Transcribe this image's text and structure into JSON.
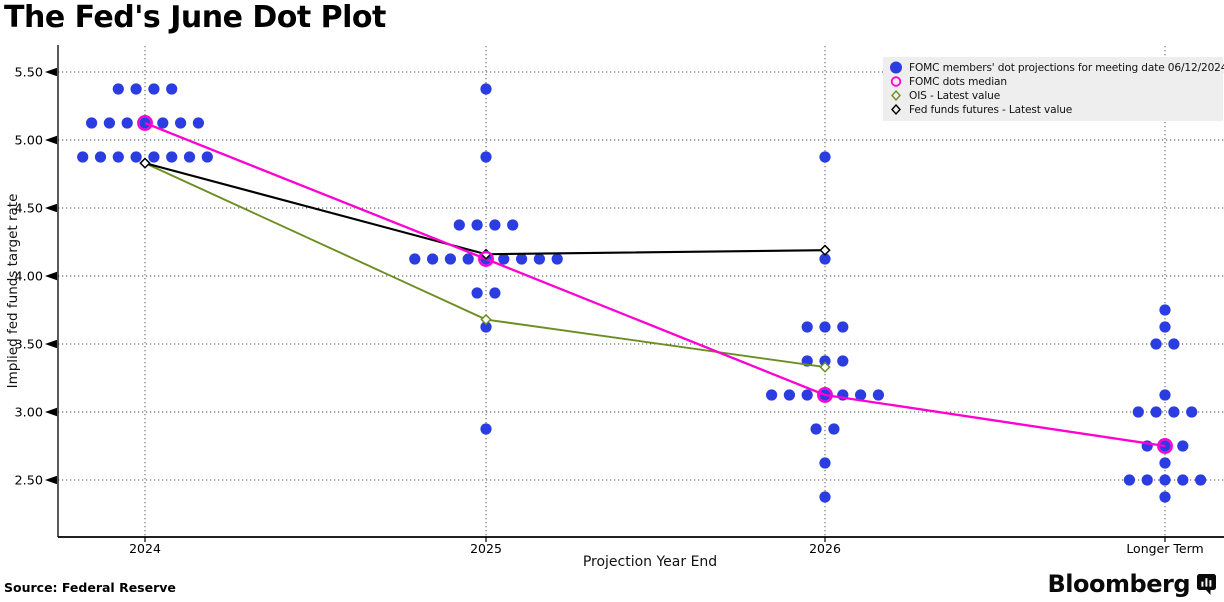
{
  "header": {
    "title": "The Fed's June Dot Plot"
  },
  "footer": {
    "source": "Source: Federal Reserve",
    "brand": "Bloomberg"
  },
  "chart_data": {
    "type": "scatter",
    "title": "The Fed's June Dot Plot",
    "xlabel": "Projection Year End",
    "ylabel": "Implied fed funds target rate",
    "categories": [
      "2024",
      "2025",
      "2026",
      "Longer Term"
    ],
    "ylim": [
      2.08,
      5.7
    ],
    "grid": true,
    "legend_position": "top-right",
    "legend_bg": "#EEEEEE",
    "yticks": [
      {
        "value": 5.5,
        "label": "5.50"
      },
      {
        "value": 5.0,
        "label": "5.00"
      },
      {
        "value": 4.5,
        "label": "4.50"
      },
      {
        "value": 4.0,
        "label": "4.00"
      },
      {
        "value": 3.5,
        "label": "3.50"
      },
      {
        "value": 3.0,
        "label": "3.00"
      },
      {
        "value": 2.5,
        "label": "2.50"
      }
    ],
    "series": [
      {
        "name": "FOMC members' dot projections for meeting date 06/12/2024",
        "type": "dot-cluster",
        "marker": "filled-circle",
        "color": "#2B3DE0",
        "clusters": [
          {
            "category": "2024",
            "rows": [
              {
                "rate": 5.375,
                "count": 4
              },
              {
                "rate": 5.125,
                "count": 7
              },
              {
                "rate": 4.875,
                "count": 8
              }
            ]
          },
          {
            "category": "2025",
            "rows": [
              {
                "rate": 5.375,
                "count": 1
              },
              {
                "rate": 4.875,
                "count": 1
              },
              {
                "rate": 4.375,
                "count": 4
              },
              {
                "rate": 4.125,
                "count": 9
              },
              {
                "rate": 3.875,
                "count": 2
              },
              {
                "rate": 3.625,
                "count": 1
              },
              {
                "rate": 2.875,
                "count": 1
              }
            ]
          },
          {
            "category": "2026",
            "rows": [
              {
                "rate": 4.875,
                "count": 1
              },
              {
                "rate": 4.125,
                "count": 1
              },
              {
                "rate": 3.625,
                "count": 3
              },
              {
                "rate": 3.375,
                "count": 3
              },
              {
                "rate": 3.125,
                "count": 7
              },
              {
                "rate": 2.875,
                "count": 2
              },
              {
                "rate": 2.625,
                "count": 1
              },
              {
                "rate": 2.375,
                "count": 1
              }
            ]
          },
          {
            "category": "Longer Term",
            "rows": [
              {
                "rate": 3.75,
                "count": 1
              },
              {
                "rate": 3.625,
                "count": 1
              },
              {
                "rate": 3.5,
                "count": 2
              },
              {
                "rate": 3.125,
                "count": 1
              },
              {
                "rate": 3.0,
                "count": 4
              },
              {
                "rate": 2.75,
                "count": 3
              },
              {
                "rate": 2.625,
                "count": 1
              },
              {
                "rate": 2.5,
                "count": 5
              },
              {
                "rate": 2.375,
                "count": 1
              }
            ]
          }
        ]
      },
      {
        "name": "FOMC dots median",
        "type": "line",
        "marker": "open-circle",
        "color": "#FF00D4",
        "values": [
          5.125,
          4.125,
          3.125,
          2.75
        ]
      },
      {
        "name": "OIS - Latest value",
        "type": "line",
        "marker": "open-diamond",
        "color": "#6B8E23",
        "values": [
          4.83,
          3.68,
          3.33,
          null
        ]
      },
      {
        "name": "Fed funds futures - Latest value",
        "type": "line",
        "marker": "open-diamond",
        "color": "#000000",
        "values": [
          4.83,
          4.16,
          4.19,
          null
        ]
      }
    ]
  }
}
